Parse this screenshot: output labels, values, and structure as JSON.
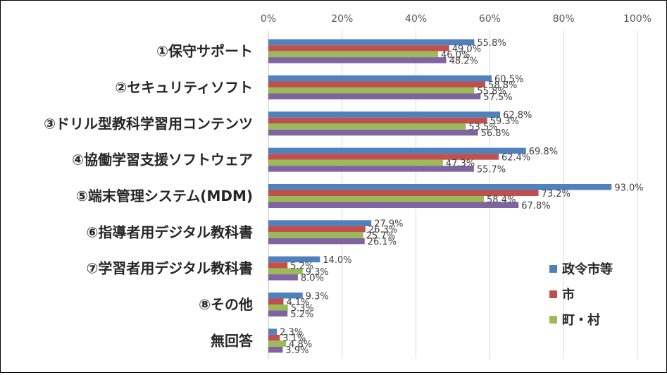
{
  "chart_data": {
    "type": "bar",
    "orientation": "horizontal",
    "categories": [
      "①保守サポート",
      "②セキュリティソフト",
      "③ドリル型教科学習用コンテンツ",
      "④協働学習支援ソフトウェア",
      "⑤端末管理システム(MDM)",
      "⑥指導者用デジタル教科書",
      "⑦学習者用デジタル教科書",
      "⑧その他",
      "無回答"
    ],
    "series": [
      {
        "name": "政令市等",
        "color": "#4f81bd",
        "values": [
          55.8,
          60.5,
          62.8,
          69.8,
          93.0,
          27.9,
          14.0,
          9.3,
          2.3
        ],
        "labels": [
          "55.8%",
          "60.5%",
          "62.8%",
          "69.8%",
          "93.0%",
          "27.9%",
          "14.0%",
          "9.3%",
          "2.3%"
        ]
      },
      {
        "name": "市",
        "color": "#c0504d",
        "values": [
          49.0,
          58.8,
          59.3,
          62.4,
          73.2,
          26.3,
          5.2,
          4.1,
          3.1
        ],
        "labels": [
          "49.0%",
          "58.8%",
          "59.3%",
          "62.4%",
          "73.2%",
          "26.3%",
          "5.2%",
          "4.1%",
          "3.1%"
        ]
      },
      {
        "name": "町・村",
        "color": "#9bbb59",
        "values": [
          46.0,
          55.8,
          53.5,
          47.3,
          58.4,
          25.7,
          9.3,
          5.3,
          4.8
        ],
        "labels": [
          "46.0%",
          "55.8%",
          "53.5%",
          "47.3%",
          "58.4%",
          "25.7%",
          "9.3%",
          "5.3%",
          "4.8%"
        ]
      },
      {
        "color": "#8064a2",
        "values": [
          48.2,
          57.5,
          56.8,
          55.7,
          67.8,
          26.1,
          8.0,
          5.2,
          3.9
        ],
        "labels": [
          "48.2%",
          "57.5%",
          "56.8%",
          "55.7%",
          "67.8%",
          "26.1%",
          "8.0%",
          "5.2%",
          "3.9%"
        ]
      }
    ],
    "xlim": [
      0,
      100
    ],
    "xticks": [
      "0%",
      "20%",
      "40%",
      "60%",
      "80%",
      "100%"
    ],
    "xtick_values": [
      0,
      20,
      40,
      60,
      80,
      100
    ],
    "grid": true,
    "legend": "bottom-right"
  }
}
